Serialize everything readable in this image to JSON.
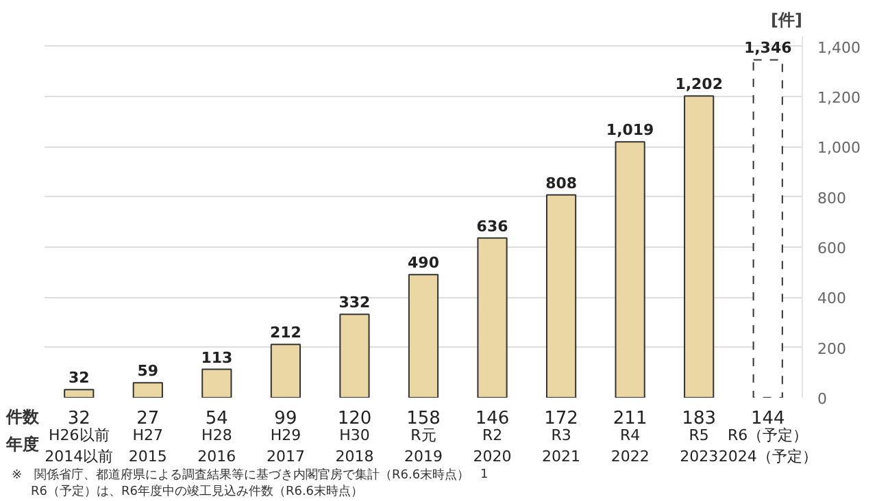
{
  "chart_data": {
    "type": "bar",
    "categories": [
      "H26以前\n2014以前",
      "H27\n2015",
      "H28\n2016",
      "H29\n2017",
      "H30\n2018",
      "R元\n2019",
      "R2\n2020",
      "R3\n2021",
      "R4\n2022",
      "R5\n2023",
      "R6（予定）\n2024（予定）"
    ],
    "series": [
      {
        "color": "#ead7a4",
        "line_style": "solid",
        "values": [
          32,
          59,
          113,
          212,
          332,
          490,
          636,
          808,
          1019,
          1202,
          null
        ],
        "value_labels": [
          "32",
          "59",
          "113",
          "212",
          "332",
          "490",
          "636",
          "808",
          "1,019",
          "1,202",
          null
        ]
      },
      {
        "color": "#ffffff",
        "line_style": "dashed",
        "values": [
          null,
          null,
          null,
          null,
          null,
          null,
          null,
          null,
          null,
          null,
          1346
        ],
        "value_labels": [
          null,
          null,
          null,
          null,
          null,
          null,
          null,
          null,
          null,
          null,
          "1,346"
        ]
      }
    ],
    "ylabel": "[件]",
    "ylim": [
      0,
      1440
    ],
    "yticks": [
      0,
      {
        "value": 200,
        "label": "200"
      },
      {
        "value": 400,
        "label": "400"
      },
      {
        "value": 600,
        "label": "600"
      },
      {
        "value": 800,
        "label": "800"
      },
      {
        "value": 1000,
        "label": "1,000"
      },
      {
        "value": 1200,
        "label": "1,200"
      },
      {
        "value": 1400,
        "label": "1,400"
      }
    ],
    "grid": "y",
    "annotations": [
      "件数",
      "32",
      "27",
      "54",
      "99",
      "120",
      "158",
      "146",
      "172",
      "211",
      "183",
      "144",
      "年度",
      "※　関係省庁、都道府県による調査結果等に基づき内閣官房で集計（R6.6末時点）",
      "R6（予定）は、R6年度中の竣工見込み件数（R6.6末時点）",
      "1"
    ]
  }
}
